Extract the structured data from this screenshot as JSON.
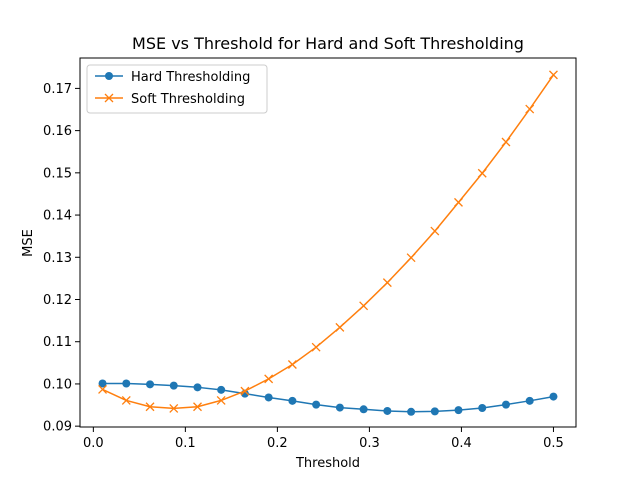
{
  "chart_data": {
    "type": "line",
    "title": "MSE vs Threshold for Hard and Soft Thresholding",
    "xlabel": "Threshold",
    "ylabel": "MSE",
    "xlim": [
      -0.0145,
      0.5245
    ],
    "ylim": [
      0.0898,
      0.1772
    ],
    "xticks": [
      0.0,
      0.1,
      0.2,
      0.3,
      0.4,
      0.5
    ],
    "xtick_labels": [
      "0.0",
      "0.1",
      "0.2",
      "0.3",
      "0.4",
      "0.5"
    ],
    "yticks": [
      0.09,
      0.1,
      0.11,
      0.12,
      0.13,
      0.14,
      0.15,
      0.16,
      0.17
    ],
    "ytick_labels": [
      "0.09",
      "0.10",
      "0.11",
      "0.12",
      "0.13",
      "0.14",
      "0.15",
      "0.16",
      "0.17"
    ],
    "grid": false,
    "legend_position": "top-left",
    "x": [
      0.01,
      0.0358,
      0.0616,
      0.0874,
      0.1132,
      0.1389,
      0.1647,
      0.1905,
      0.2163,
      0.2421,
      0.2679,
      0.2937,
      0.3195,
      0.3453,
      0.3711,
      0.3968,
      0.4226,
      0.4484,
      0.4742,
      0.5
    ],
    "series": [
      {
        "name": "Hard Thresholding",
        "color": "#1f77b4",
        "marker": "circle",
        "values": [
          0.1001,
          0.1001,
          0.0999,
          0.0996,
          0.0992,
          0.0986,
          0.0977,
          0.0968,
          0.096,
          0.0951,
          0.0944,
          0.094,
          0.0936,
          0.0934,
          0.0935,
          0.0938,
          0.0943,
          0.0951,
          0.096,
          0.097
        ]
      },
      {
        "name": "Soft Thresholding",
        "color": "#ff7f0e",
        "marker": "x",
        "values": [
          0.0987,
          0.0961,
          0.0946,
          0.0942,
          0.0946,
          0.0961,
          0.0983,
          0.1012,
          0.1046,
          0.1087,
          0.1134,
          0.1185,
          0.124,
          0.1299,
          0.1362,
          0.143,
          0.1499,
          0.1573,
          0.1651,
          0.1732
        ]
      }
    ]
  }
}
